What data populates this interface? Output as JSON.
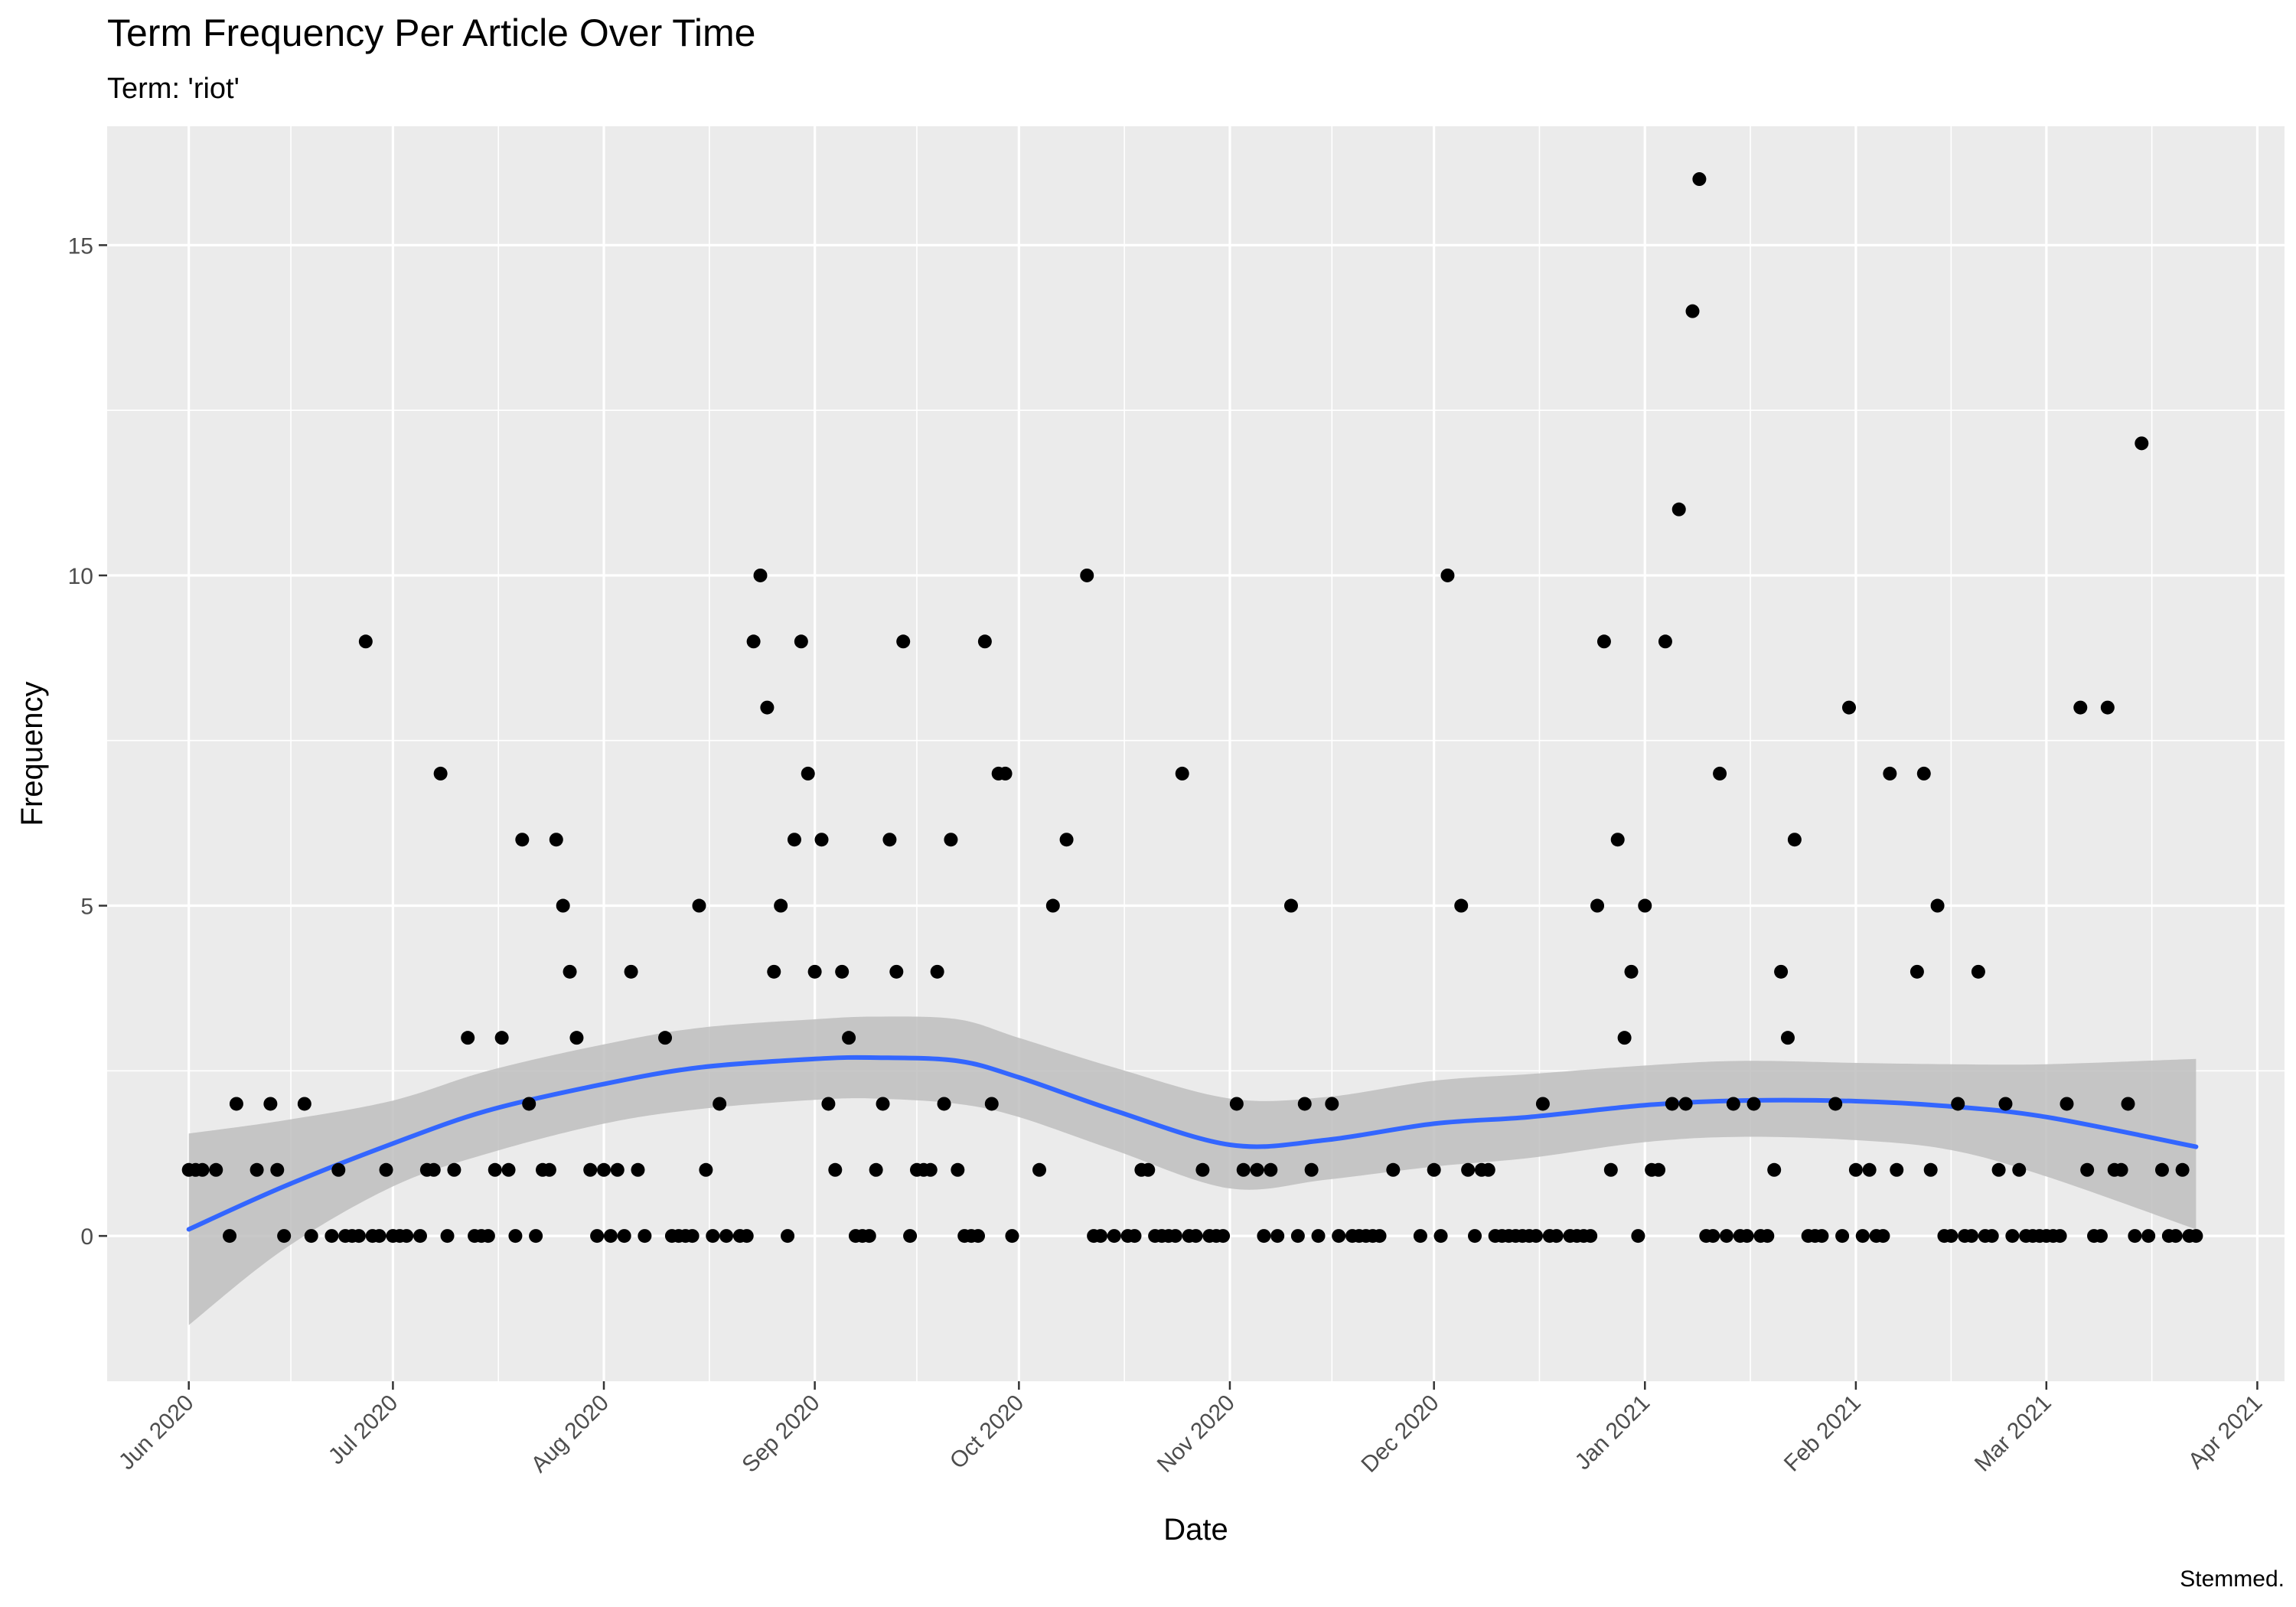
{
  "chart_data": {
    "type": "scatter",
    "title": "Term Frequency Per Article Over Time",
    "subtitle": "Term: 'riot'",
    "xlabel": "Date",
    "ylabel": "Frequency",
    "caption": "Stemmed.",
    "xlim": [
      "2020-05-20",
      "2021-04-05"
    ],
    "ylim": [
      -2.2,
      16.8
    ],
    "x_ticks": [
      {
        "date": "2020-06-01",
        "label": "Jun 2020"
      },
      {
        "date": "2020-07-01",
        "label": "Jul 2020"
      },
      {
        "date": "2020-08-01",
        "label": "Aug 2020"
      },
      {
        "date": "2020-09-01",
        "label": "Sep 2020"
      },
      {
        "date": "2020-10-01",
        "label": "Oct 2020"
      },
      {
        "date": "2020-11-01",
        "label": "Nov 2020"
      },
      {
        "date": "2020-12-01",
        "label": "Dec 2020"
      },
      {
        "date": "2021-01-01",
        "label": "Jan 2021"
      },
      {
        "date": "2021-02-01",
        "label": "Feb 2021"
      },
      {
        "date": "2021-03-01",
        "label": "Mar 2021"
      },
      {
        "date": "2021-04-01",
        "label": "Apr 2021"
      }
    ],
    "y_ticks": [
      0,
      5,
      10,
      15
    ],
    "grid": true,
    "colors": {
      "panel": "#ebebeb",
      "grid": "#ffffff",
      "points": "#000000",
      "smooth_line": "#3366ff",
      "ribbon": "#bebebe"
    },
    "points": [
      [
        "2020-06-01",
        1
      ],
      [
        "2020-06-02",
        1
      ],
      [
        "2020-06-03",
        1
      ],
      [
        "2020-06-05",
        1
      ],
      [
        "2020-06-07",
        0
      ],
      [
        "2020-06-08",
        2
      ],
      [
        "2020-06-11",
        1
      ],
      [
        "2020-06-13",
        2
      ],
      [
        "2020-06-14",
        1
      ],
      [
        "2020-06-15",
        0
      ],
      [
        "2020-06-18",
        2
      ],
      [
        "2020-06-19",
        0
      ],
      [
        "2020-06-22",
        0
      ],
      [
        "2020-06-23",
        1
      ],
      [
        "2020-06-24",
        0
      ],
      [
        "2020-06-25",
        0
      ],
      [
        "2020-06-26",
        0
      ],
      [
        "2020-06-27",
        9
      ],
      [
        "2020-06-28",
        0
      ],
      [
        "2020-06-29",
        0
      ],
      [
        "2020-06-30",
        1
      ],
      [
        "2020-07-01",
        0
      ],
      [
        "2020-07-02",
        0
      ],
      [
        "2020-07-03",
        0
      ],
      [
        "2020-07-05",
        0
      ],
      [
        "2020-07-06",
        1
      ],
      [
        "2020-07-07",
        1
      ],
      [
        "2020-07-08",
        7
      ],
      [
        "2020-07-09",
        0
      ],
      [
        "2020-07-10",
        1
      ],
      [
        "2020-07-12",
        3
      ],
      [
        "2020-07-13",
        0
      ],
      [
        "2020-07-14",
        0
      ],
      [
        "2020-07-15",
        0
      ],
      [
        "2020-07-16",
        1
      ],
      [
        "2020-07-17",
        3
      ],
      [
        "2020-07-18",
        1
      ],
      [
        "2020-07-19",
        0
      ],
      [
        "2020-07-20",
        6
      ],
      [
        "2020-07-21",
        2
      ],
      [
        "2020-07-22",
        0
      ],
      [
        "2020-07-23",
        1
      ],
      [
        "2020-07-24",
        1
      ],
      [
        "2020-07-25",
        6
      ],
      [
        "2020-07-26",
        5
      ],
      [
        "2020-07-27",
        4
      ],
      [
        "2020-07-28",
        3
      ],
      [
        "2020-07-30",
        1
      ],
      [
        "2020-07-31",
        0
      ],
      [
        "2020-08-01",
        1
      ],
      [
        "2020-08-02",
        0
      ],
      [
        "2020-08-03",
        1
      ],
      [
        "2020-08-04",
        0
      ],
      [
        "2020-08-05",
        4
      ],
      [
        "2020-08-06",
        1
      ],
      [
        "2020-08-07",
        0
      ],
      [
        "2020-08-10",
        3
      ],
      [
        "2020-08-11",
        0
      ],
      [
        "2020-08-12",
        0
      ],
      [
        "2020-08-13",
        0
      ],
      [
        "2020-08-14",
        0
      ],
      [
        "2020-08-15",
        5
      ],
      [
        "2020-08-16",
        1
      ],
      [
        "2020-08-17",
        0
      ],
      [
        "2020-08-18",
        2
      ],
      [
        "2020-08-19",
        0
      ],
      [
        "2020-08-21",
        0
      ],
      [
        "2020-08-22",
        0
      ],
      [
        "2020-08-23",
        9
      ],
      [
        "2020-08-24",
        10
      ],
      [
        "2020-08-25",
        8
      ],
      [
        "2020-08-26",
        4
      ],
      [
        "2020-08-27",
        5
      ],
      [
        "2020-08-28",
        0
      ],
      [
        "2020-08-29",
        6
      ],
      [
        "2020-08-30",
        9
      ],
      [
        "2020-08-31",
        7
      ],
      [
        "2020-09-01",
        4
      ],
      [
        "2020-09-02",
        6
      ],
      [
        "2020-09-03",
        2
      ],
      [
        "2020-09-04",
        1
      ],
      [
        "2020-09-05",
        4
      ],
      [
        "2020-09-06",
        3
      ],
      [
        "2020-09-07",
        0
      ],
      [
        "2020-09-08",
        0
      ],
      [
        "2020-09-09",
        0
      ],
      [
        "2020-09-10",
        1
      ],
      [
        "2020-09-11",
        2
      ],
      [
        "2020-09-12",
        6
      ],
      [
        "2020-09-13",
        4
      ],
      [
        "2020-09-14",
        9
      ],
      [
        "2020-09-15",
        0
      ],
      [
        "2020-09-16",
        1
      ],
      [
        "2020-09-17",
        1
      ],
      [
        "2020-09-18",
        1
      ],
      [
        "2020-09-19",
        4
      ],
      [
        "2020-09-20",
        2
      ],
      [
        "2020-09-21",
        6
      ],
      [
        "2020-09-22",
        1
      ],
      [
        "2020-09-23",
        0
      ],
      [
        "2020-09-24",
        0
      ],
      [
        "2020-09-25",
        0
      ],
      [
        "2020-09-26",
        9
      ],
      [
        "2020-09-27",
        2
      ],
      [
        "2020-09-28",
        7
      ],
      [
        "2020-09-29",
        7
      ],
      [
        "2020-09-30",
        0
      ],
      [
        "2020-10-04",
        1
      ],
      [
        "2020-10-06",
        5
      ],
      [
        "2020-10-08",
        6
      ],
      [
        "2020-10-11",
        10
      ],
      [
        "2020-10-12",
        0
      ],
      [
        "2020-10-13",
        0
      ],
      [
        "2020-10-15",
        0
      ],
      [
        "2020-10-17",
        0
      ],
      [
        "2020-10-18",
        0
      ],
      [
        "2020-10-19",
        1
      ],
      [
        "2020-10-20",
        1
      ],
      [
        "2020-10-21",
        0
      ],
      [
        "2020-10-22",
        0
      ],
      [
        "2020-10-23",
        0
      ],
      [
        "2020-10-24",
        0
      ],
      [
        "2020-10-25",
        7
      ],
      [
        "2020-10-26",
        0
      ],
      [
        "2020-10-27",
        0
      ],
      [
        "2020-10-28",
        1
      ],
      [
        "2020-10-29",
        0
      ],
      [
        "2020-10-30",
        0
      ],
      [
        "2020-10-31",
        0
      ],
      [
        "2020-11-02",
        2
      ],
      [
        "2020-11-03",
        1
      ],
      [
        "2020-11-05",
        1
      ],
      [
        "2020-11-06",
        0
      ],
      [
        "2020-11-07",
        1
      ],
      [
        "2020-11-08",
        0
      ],
      [
        "2020-11-10",
        5
      ],
      [
        "2020-11-11",
        0
      ],
      [
        "2020-11-12",
        2
      ],
      [
        "2020-11-13",
        1
      ],
      [
        "2020-11-14",
        0
      ],
      [
        "2020-11-16",
        2
      ],
      [
        "2020-11-17",
        0
      ],
      [
        "2020-11-19",
        0
      ],
      [
        "2020-11-20",
        0
      ],
      [
        "2020-11-21",
        0
      ],
      [
        "2020-11-22",
        0
      ],
      [
        "2020-11-23",
        0
      ],
      [
        "2020-11-25",
        1
      ],
      [
        "2020-11-29",
        0
      ],
      [
        "2020-12-01",
        1
      ],
      [
        "2020-12-02",
        0
      ],
      [
        "2020-12-03",
        10
      ],
      [
        "2020-12-05",
        5
      ],
      [
        "2020-12-06",
        1
      ],
      [
        "2020-12-07",
        0
      ],
      [
        "2020-12-08",
        1
      ],
      [
        "2020-12-09",
        1
      ],
      [
        "2020-12-10",
        0
      ],
      [
        "2020-12-11",
        0
      ],
      [
        "2020-12-12",
        0
      ],
      [
        "2020-12-13",
        0
      ],
      [
        "2020-12-14",
        0
      ],
      [
        "2020-12-15",
        0
      ],
      [
        "2020-12-16",
        0
      ],
      [
        "2020-12-17",
        2
      ],
      [
        "2020-12-18",
        0
      ],
      [
        "2020-12-19",
        0
      ],
      [
        "2020-12-21",
        0
      ],
      [
        "2020-12-22",
        0
      ],
      [
        "2020-12-23",
        0
      ],
      [
        "2020-12-24",
        0
      ],
      [
        "2020-12-25",
        5
      ],
      [
        "2020-12-26",
        9
      ],
      [
        "2020-12-27",
        1
      ],
      [
        "2020-12-28",
        6
      ],
      [
        "2020-12-29",
        3
      ],
      [
        "2020-12-30",
        4
      ],
      [
        "2020-12-31",
        0
      ],
      [
        "2021-01-01",
        5
      ],
      [
        "2021-01-02",
        1
      ],
      [
        "2021-01-03",
        1
      ],
      [
        "2021-01-04",
        9
      ],
      [
        "2021-01-05",
        2
      ],
      [
        "2021-01-06",
        11
      ],
      [
        "2021-01-07",
        2
      ],
      [
        "2021-01-08",
        14
      ],
      [
        "2021-01-09",
        16
      ],
      [
        "2021-01-10",
        0
      ],
      [
        "2021-01-11",
        0
      ],
      [
        "2021-01-12",
        7
      ],
      [
        "2021-01-13",
        0
      ],
      [
        "2021-01-14",
        2
      ],
      [
        "2021-01-15",
        0
      ],
      [
        "2021-01-16",
        0
      ],
      [
        "2021-01-17",
        2
      ],
      [
        "2021-01-18",
        0
      ],
      [
        "2021-01-19",
        0
      ],
      [
        "2021-01-20",
        1
      ],
      [
        "2021-01-21",
        4
      ],
      [
        "2021-01-22",
        3
      ],
      [
        "2021-01-23",
        6
      ],
      [
        "2021-01-25",
        0
      ],
      [
        "2021-01-26",
        0
      ],
      [
        "2021-01-27",
        0
      ],
      [
        "2021-01-29",
        2
      ],
      [
        "2021-01-30",
        0
      ],
      [
        "2021-01-31",
        8
      ],
      [
        "2021-02-01",
        1
      ],
      [
        "2021-02-02",
        0
      ],
      [
        "2021-02-03",
        1
      ],
      [
        "2021-02-04",
        0
      ],
      [
        "2021-02-05",
        0
      ],
      [
        "2021-02-06",
        7
      ],
      [
        "2021-02-07",
        1
      ],
      [
        "2021-02-10",
        4
      ],
      [
        "2021-02-11",
        7
      ],
      [
        "2021-02-12",
        1
      ],
      [
        "2021-02-13",
        5
      ],
      [
        "2021-02-14",
        0
      ],
      [
        "2021-02-15",
        0
      ],
      [
        "2021-02-16",
        2
      ],
      [
        "2021-02-17",
        0
      ],
      [
        "2021-02-18",
        0
      ],
      [
        "2021-02-19",
        4
      ],
      [
        "2021-02-20",
        0
      ],
      [
        "2021-02-21",
        0
      ],
      [
        "2021-02-22",
        1
      ],
      [
        "2021-02-23",
        2
      ],
      [
        "2021-02-24",
        0
      ],
      [
        "2021-02-25",
        1
      ],
      [
        "2021-02-26",
        0
      ],
      [
        "2021-02-27",
        0
      ],
      [
        "2021-02-28",
        0
      ],
      [
        "2021-03-01",
        0
      ],
      [
        "2021-03-02",
        0
      ],
      [
        "2021-03-03",
        0
      ],
      [
        "2021-03-04",
        2
      ],
      [
        "2021-03-06",
        8
      ],
      [
        "2021-03-07",
        1
      ],
      [
        "2021-03-08",
        0
      ],
      [
        "2021-03-09",
        0
      ],
      [
        "2021-03-10",
        8
      ],
      [
        "2021-03-11",
        1
      ],
      [
        "2021-03-12",
        1
      ],
      [
        "2021-03-13",
        2
      ],
      [
        "2021-03-14",
        0
      ],
      [
        "2021-03-15",
        12
      ],
      [
        "2021-03-16",
        0
      ],
      [
        "2021-03-18",
        1
      ],
      [
        "2021-03-19",
        0
      ],
      [
        "2021-03-20",
        0
      ],
      [
        "2021-03-21",
        1
      ],
      [
        "2021-03-22",
        0
      ],
      [
        "2021-03-23",
        0
      ]
    ],
    "smooth": {
      "x": [
        "2020-06-01",
        "2020-06-15",
        "2020-07-01",
        "2020-07-15",
        "2020-08-01",
        "2020-08-15",
        "2020-09-01",
        "2020-09-10",
        "2020-09-22",
        "2020-10-01",
        "2020-10-15",
        "2020-11-01",
        "2020-11-15",
        "2020-12-01",
        "2020-12-15",
        "2021-01-01",
        "2021-01-15",
        "2021-02-01",
        "2021-02-15",
        "2021-03-01",
        "2021-03-23"
      ],
      "y": [
        0.1,
        0.75,
        1.4,
        1.9,
        2.3,
        2.55,
        2.68,
        2.7,
        2.65,
        2.4,
        1.9,
        1.38,
        1.45,
        1.7,
        1.8,
        1.98,
        2.05,
        2.04,
        1.96,
        1.8,
        1.35
      ],
      "lower": [
        -1.35,
        -0.2,
        0.75,
        1.25,
        1.7,
        1.92,
        2.06,
        2.08,
        2.0,
        1.8,
        1.3,
        0.72,
        0.85,
        1.05,
        1.18,
        1.42,
        1.5,
        1.45,
        1.3,
        0.9,
        0.1
      ],
      "upper": [
        1.55,
        1.75,
        2.05,
        2.5,
        2.9,
        3.15,
        3.28,
        3.32,
        3.28,
        3.0,
        2.55,
        2.08,
        2.1,
        2.35,
        2.45,
        2.58,
        2.65,
        2.62,
        2.6,
        2.6,
        2.68
      ]
    }
  }
}
